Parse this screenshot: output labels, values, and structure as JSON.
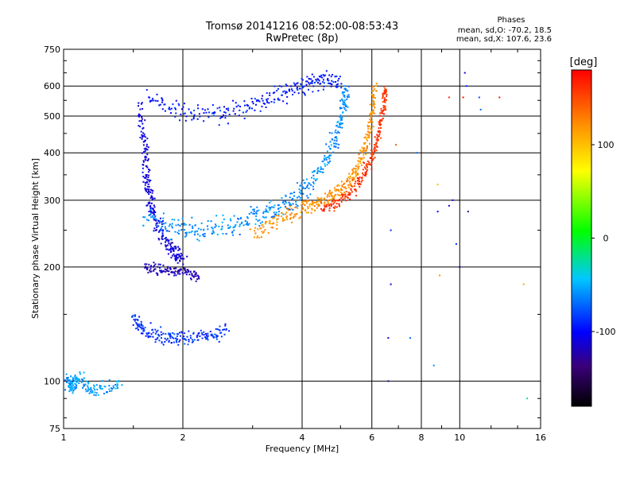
{
  "chart_data": {
    "type": "scatter",
    "title": "Tromsø 20141216 08:52:00-08:53:43",
    "subtitle": "RwPretec (8p)",
    "xlabel": "Frequency [MHz]",
    "ylabel": "Stationary phase Virtual Height [km]",
    "x_scale": "log",
    "y_scale": "log",
    "xlim": [
      1,
      16
    ],
    "ylim": [
      75,
      750
    ],
    "x_ticks": [
      1,
      2,
      4,
      6,
      8,
      10,
      16
    ],
    "x_tick_labels": [
      "1",
      "2",
      "4",
      "6",
      "8",
      "10",
      "16"
    ],
    "y_ticks": [
      75,
      100,
      200,
      300,
      400,
      500,
      600,
      750
    ],
    "y_tick_labels": [
      "75",
      "100",
      "200",
      "300",
      "400",
      "500",
      "600",
      "750"
    ],
    "grid": true,
    "colorbar": {
      "label": "[deg]",
      "range": [
        -180,
        180
      ],
      "ticks": [
        100,
        0,
        -100
      ],
      "tick_labels": [
        "100",
        "0",
        "-100"
      ]
    },
    "stats_header": "Phases",
    "stats_lines": [
      "mean, sd,O: -70.2, 18.5",
      "mean, sd,X: 107.6, 23.6"
    ],
    "traces": [
      {
        "name": "",
        "points": [
          [
            1.62,
            560
          ],
          [
            2.0,
            510
          ],
          [
            2.5,
            505
          ],
          [
            3.0,
            530
          ],
          [
            3.5,
            570
          ],
          [
            4.0,
            600
          ],
          [
            4.5,
            615
          ],
          [
            5.0,
            610
          ]
        ],
        "phase": -95,
        "spread": 0.035
      },
      {
        "name": "",
        "points": [
          [
            1.55,
            520
          ],
          [
            1.6,
            420
          ],
          [
            1.62,
            350
          ],
          [
            1.65,
            300
          ],
          [
            1.7,
            270
          ],
          [
            1.8,
            240
          ],
          [
            1.9,
            220
          ],
          [
            2.0,
            205
          ]
        ],
        "phase": -110,
        "spread": 0.04
      },
      {
        "name": "",
        "points": [
          [
            1.6,
            270
          ],
          [
            1.9,
            255
          ],
          [
            2.2,
            250
          ],
          [
            2.6,
            255
          ],
          [
            3.0,
            270
          ],
          [
            3.4,
            285
          ],
          [
            3.8,
            300
          ],
          [
            4.2,
            330
          ],
          [
            4.6,
            380
          ],
          [
            4.9,
            440
          ],
          [
            5.1,
            520
          ],
          [
            5.2,
            600
          ]
        ],
        "phase": -60,
        "spread": 0.04
      },
      {
        "name": "",
        "points": [
          [
            3.0,
            245
          ],
          [
            3.5,
            265
          ],
          [
            4.0,
            285
          ],
          [
            4.4,
            295
          ],
          [
            4.8,
            310
          ],
          [
            5.2,
            330
          ],
          [
            5.5,
            360
          ],
          [
            5.8,
            420
          ],
          [
            6.0,
            500
          ],
          [
            6.1,
            600
          ]
        ],
        "phase": 120,
        "spread": 0.03
      },
      {
        "name": "",
        "points": [
          [
            4.5,
            285
          ],
          [
            5.0,
            300
          ],
          [
            5.5,
            330
          ],
          [
            5.9,
            370
          ],
          [
            6.2,
            430
          ],
          [
            6.4,
            520
          ],
          [
            6.5,
            600
          ]
        ],
        "phase": 160,
        "spread": 0.025
      },
      {
        "name": "",
        "points": [
          [
            1.6,
            200
          ],
          [
            1.8,
            195
          ],
          [
            2.0,
            195
          ],
          [
            2.2,
            190
          ]
        ],
        "phase": -120,
        "spread": 0.02
      },
      {
        "name": "",
        "points": [
          [
            1.5,
            145
          ],
          [
            1.6,
            135
          ],
          [
            1.8,
            130
          ],
          [
            2.0,
            130
          ],
          [
            2.3,
            132
          ],
          [
            2.6,
            135
          ]
        ],
        "phase": -85,
        "spread": 0.03
      },
      {
        "name": "",
        "points": [
          [
            1.02,
            100
          ],
          [
            1.05,
            97
          ],
          [
            1.1,
            102
          ],
          [
            1.2,
            94
          ],
          [
            1.4,
            98
          ]
        ],
        "phase": -55,
        "spread": 0.03
      }
    ],
    "isolated_points": [
      [
        6.7,
        250,
        -90
      ],
      [
        6.7,
        180,
        -120
      ],
      [
        6.6,
        130,
        -110
      ],
      [
        6.6,
        100,
        -130
      ],
      [
        7.5,
        130,
        -70
      ],
      [
        8.6,
        110,
        -60
      ],
      [
        8.8,
        280,
        -100
      ],
      [
        9.4,
        290,
        -110
      ],
      [
        9.6,
        300,
        -110
      ],
      [
        9.8,
        230,
        -90
      ],
      [
        10.3,
        650,
        -110
      ],
      [
        10.4,
        600,
        -90
      ],
      [
        10.5,
        280,
        -130
      ],
      [
        11.2,
        560,
        -80
      ],
      [
        11.3,
        520,
        -70
      ],
      [
        12.6,
        560,
        170
      ],
      [
        9.4,
        560,
        165
      ],
      [
        10.2,
        560,
        175
      ],
      [
        14.8,
        90,
        -20
      ],
      [
        14.5,
        180,
        110
      ],
      [
        8.8,
        330,
        100
      ],
      [
        8.9,
        190,
        120
      ],
      [
        6.9,
        420,
        140
      ],
      [
        7.8,
        400,
        -70
      ],
      [
        10.0,
        200,
        -120
      ]
    ]
  }
}
